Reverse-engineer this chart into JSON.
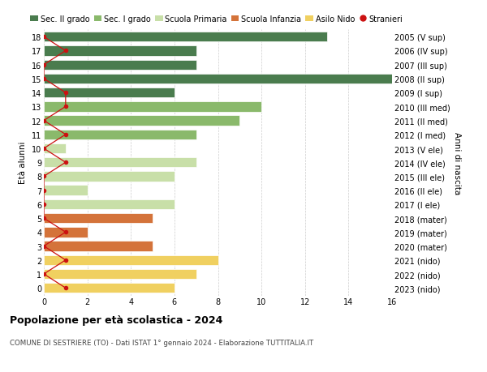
{
  "ages": [
    18,
    17,
    16,
    15,
    14,
    13,
    12,
    11,
    10,
    9,
    8,
    7,
    6,
    5,
    4,
    3,
    2,
    1,
    0
  ],
  "right_labels": [
    "2005 (V sup)",
    "2006 (IV sup)",
    "2007 (III sup)",
    "2008 (II sup)",
    "2009 (I sup)",
    "2010 (III med)",
    "2011 (II med)",
    "2012 (I med)",
    "2013 (V ele)",
    "2014 (IV ele)",
    "2015 (III ele)",
    "2016 (II ele)",
    "2017 (I ele)",
    "2018 (mater)",
    "2019 (mater)",
    "2020 (mater)",
    "2021 (nido)",
    "2022 (nido)",
    "2023 (nido)"
  ],
  "bar_values": [
    13,
    7,
    7,
    17,
    6,
    10,
    9,
    7,
    1,
    7,
    6,
    2,
    6,
    5,
    2,
    5,
    8,
    7,
    6
  ],
  "bar_colors": [
    "#4a7c4e",
    "#4a7c4e",
    "#4a7c4e",
    "#4a7c4e",
    "#4a7c4e",
    "#8ab96b",
    "#8ab96b",
    "#8ab96b",
    "#c8dfa8",
    "#c8dfa8",
    "#c8dfa8",
    "#c8dfa8",
    "#c8dfa8",
    "#d4733a",
    "#d4733a",
    "#d4733a",
    "#f0d060",
    "#f0d060",
    "#f0d060"
  ],
  "stranieri_x": [
    0,
    1,
    0,
    0,
    1,
    1,
    0,
    1,
    0,
    1,
    0,
    0,
    0,
    0,
    1,
    0,
    1,
    0,
    1
  ],
  "legend_labels": [
    "Sec. II grado",
    "Sec. I grado",
    "Scuola Primaria",
    "Scuola Infanzia",
    "Asilo Nido",
    "Stranieri"
  ],
  "legend_colors": [
    "#4a7c4e",
    "#8ab96b",
    "#c8dfa8",
    "#d4733a",
    "#f0d060",
    "#cc1111"
  ],
  "ylabel": "Età alunni",
  "right_ylabel": "Anni di nascita",
  "title": "Popolazione per età scolastica - 2024",
  "subtitle": "COMUNE DI SESTRIERE (TO) - Dati ISTAT 1° gennaio 2024 - Elaborazione TUTTITALIA.IT",
  "xlim": [
    0,
    16
  ],
  "xticks": [
    0,
    2,
    4,
    6,
    8,
    10,
    12,
    14,
    16
  ],
  "bg": "#ffffff",
  "stranieri_color": "#cc1111",
  "grid_color": "#cccccc"
}
